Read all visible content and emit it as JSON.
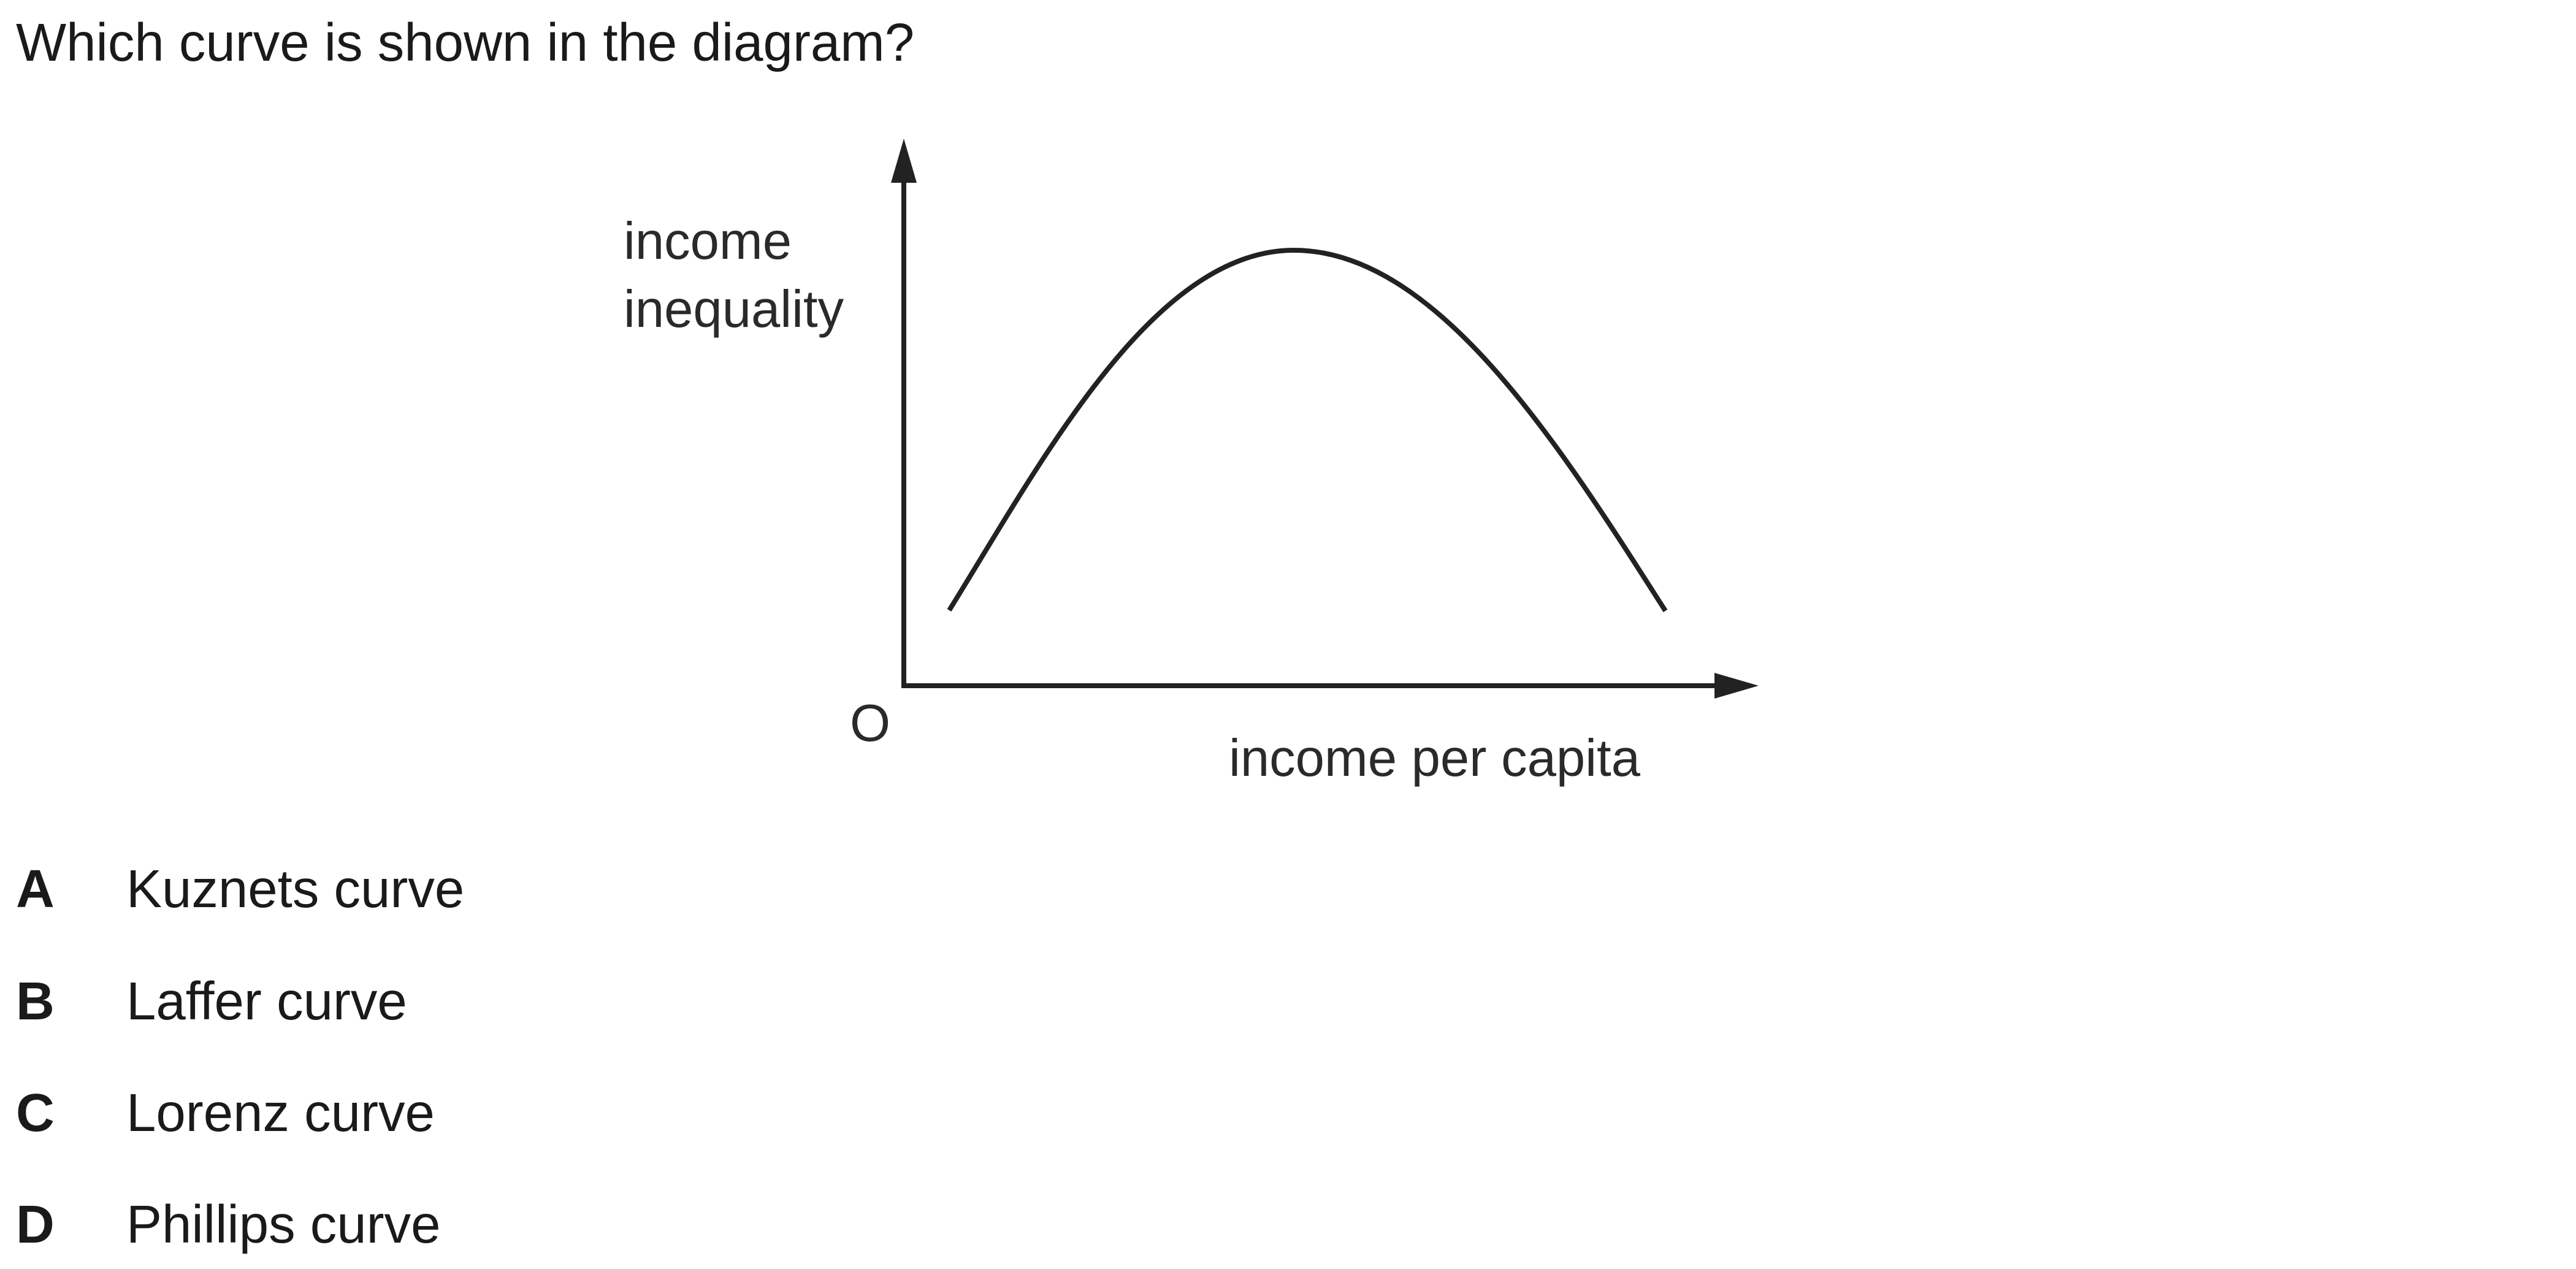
{
  "question": "Which curve is shown in the diagram?",
  "diagram": {
    "y_axis_label_line1": "income",
    "y_axis_label_line2": "inequality",
    "x_axis_label": "income per capita",
    "origin_label": "O",
    "curve_shape": "inverted-U"
  },
  "options": [
    {
      "letter": "A",
      "text": "Kuznets curve"
    },
    {
      "letter": "B",
      "text": "Laffer curve"
    },
    {
      "letter": "C",
      "text": "Lorenz curve"
    },
    {
      "letter": "D",
      "text": "Phillips curve"
    }
  ]
}
